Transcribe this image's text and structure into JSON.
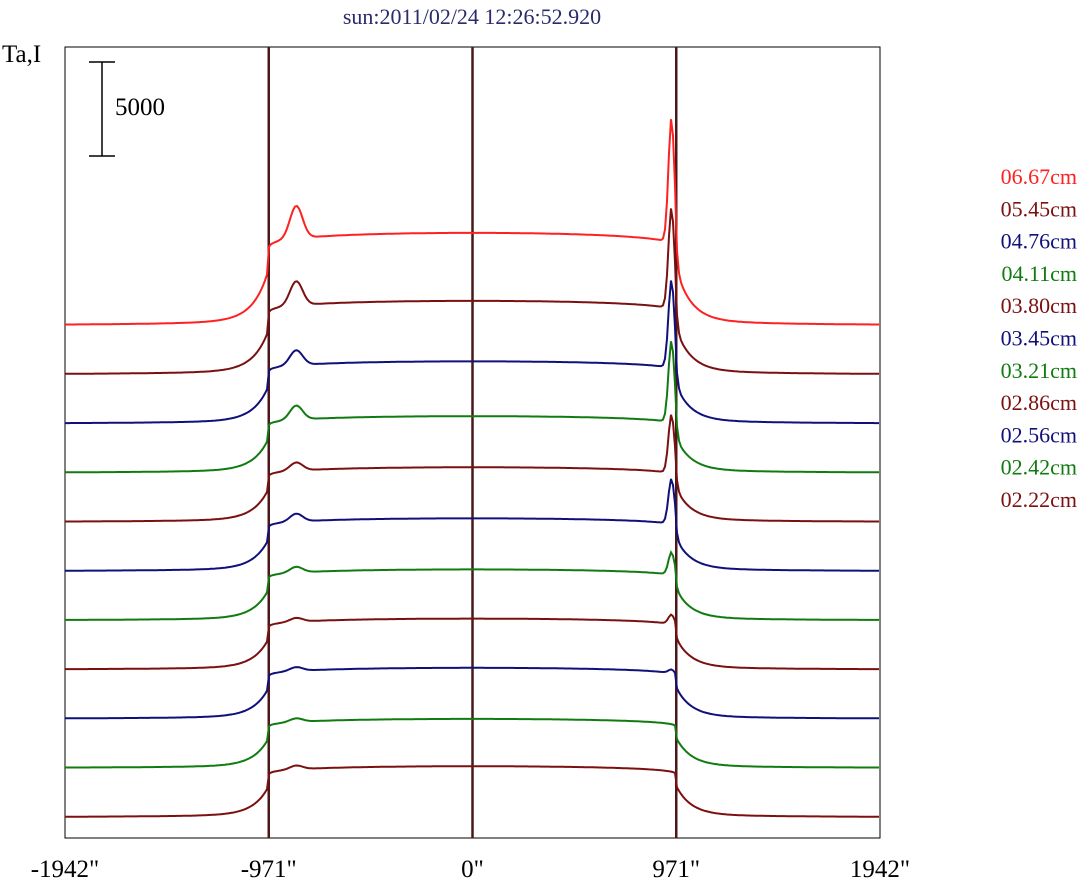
{
  "chart_data": {
    "type": "line",
    "title": "sun:2011/02/24 12:26:52.920",
    "title_color": "#2b2b6b",
    "ylabel": "Ta,I",
    "scale_bar_label": "5000",
    "x_ticks": [
      "-1942\"",
      "-971\"",
      "0\"",
      "971\"",
      "1942\""
    ],
    "xlim": [
      -1942,
      1942
    ],
    "markers_x": [
      -971,
      0,
      971
    ],
    "series": [
      {
        "name": "06.67cm",
        "color": "#ff2020",
        "limb_left": 5900,
        "limb_right": 10800,
        "disk": 4900
      },
      {
        "name": "05.45cm",
        "color": "#7b1010",
        "limb_left": 4600,
        "limb_right": 8700,
        "disk": 3900
      },
      {
        "name": "04.76cm",
        "color": "#10107b",
        "limb_left": 3600,
        "limb_right": 7500,
        "disk": 3300
      },
      {
        "name": "04.11cm",
        "color": "#107b10",
        "limb_left": 3300,
        "limb_right": 6900,
        "disk": 3000
      },
      {
        "name": "03.80cm",
        "color": "#7b1010",
        "limb_left": 2900,
        "limb_right": 5600,
        "disk": 2900
      },
      {
        "name": "03.45cm",
        "color": "#10107b",
        "limb_left": 2800,
        "limb_right": 4800,
        "disk": 2800
      },
      {
        "name": "03.21cm",
        "color": "#107b10",
        "limb_left": 2600,
        "limb_right": 3500,
        "disk": 2700
      },
      {
        "name": "02.86cm",
        "color": "#7b1010",
        "limb_left": 2500,
        "limb_right": 2800,
        "disk": 2700
      },
      {
        "name": "02.56cm",
        "color": "#10107b",
        "limb_left": 2500,
        "limb_right": 2500,
        "disk": 2700
      },
      {
        "name": "02.42cm",
        "color": "#107b10",
        "limb_left": 2400,
        "limb_right": 1900,
        "disk": 2600
      },
      {
        "name": "02.22cm",
        "color": "#7b1010",
        "limb_left": 2500,
        "limb_right": 1700,
        "disk": 2700
      }
    ]
  }
}
